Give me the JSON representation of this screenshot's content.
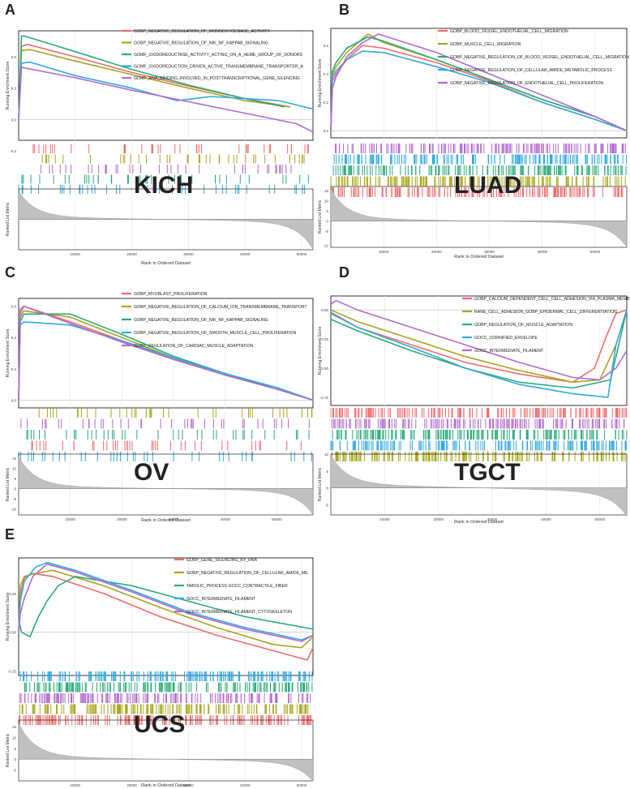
{
  "colors": {
    "red": "#F26A6B",
    "olive": "#A9A61D",
    "green": "#2BAA7A",
    "blue": "#33A9DF",
    "purple": "#B36AD0",
    "rank_fill": "#C0C0C0",
    "grid": "#E4E4E4"
  },
  "chart_data": [
    {
      "type": "line",
      "panel": "A",
      "cancer": "KICH",
      "ylabel_top": "Running Enrichment Score",
      "ylabel_bottom": "Ranked List Metric",
      "xlabel": "Rank in Ordered Dataset",
      "x_max": 52000,
      "x_ticks": [
        "10000",
        "20000",
        "30000",
        "40000",
        "50000"
      ],
      "x_tick_values": [
        10000,
        20000,
        30000,
        40000,
        50000
      ],
      "ylim": [
        -0.2,
        0.85
      ],
      "y_ticks": [
        "0.6",
        "0.3",
        "0.0",
        "-0.3"
      ],
      "y_tick_values": [
        0.6,
        0.3,
        0.0,
        -0.3
      ],
      "rank_ylim": [
        -15,
        15
      ],
      "rank_ticks": [],
      "tick_order": [
        "red",
        "olive",
        "purple",
        "green",
        "blue"
      ],
      "series": [
        {
          "name": "GOBP_NEGATIVE_REGULATION_OF_MONOOXYGENASE_ACTIVITY",
          "color": "red",
          "x": [
            0,
            500,
            1500,
            10000,
            20000,
            30000,
            40000,
            48000
          ],
          "y": [
            0,
            0.7,
            0.72,
            0.6,
            0.45,
            0.32,
            0.2,
            0.12
          ]
        },
        {
          "name": "GOBP_NEGATIVE_REGULATION_OF_NIK_NF_KAPPAB_SIGNALING",
          "color": "olive",
          "x": [
            0,
            500,
            2000,
            10000,
            20000,
            30000,
            40000,
            48000
          ],
          "y": [
            0,
            0.66,
            0.67,
            0.56,
            0.43,
            0.3,
            0.18,
            0.12
          ]
        },
        {
          "name": "GOMF_OXIDOREDUCTASE_ACTIVITY_ACTING_ON_A_HEME_GROUP_OF_DONORS",
          "color": "green",
          "x": [
            0,
            500,
            1000,
            10000,
            20000,
            30000,
            40000,
            47000
          ],
          "y": [
            0,
            0.8,
            0.8,
            0.65,
            0.48,
            0.33,
            0.2,
            0.12
          ]
        },
        {
          "name": "GOMF_OXIDOREDUCTION_DRIVEN_ACTIVE_TRANSMEMBRANE_TRANSPORTER_A",
          "color": "blue",
          "x": [
            0,
            500,
            2000,
            10000,
            20000,
            28000,
            34000,
            40000,
            46000,
            52000
          ],
          "y": [
            0,
            0.54,
            0.55,
            0.42,
            0.3,
            0.18,
            0.22,
            0.2,
            0.18,
            0.1
          ]
        },
        {
          "name": "GOMF_RNA_BINDING_INVOLVED_IN_POSTTRANSCRIPTIONAL_GENE_SILENCING",
          "color": "purple",
          "x": [
            0,
            500,
            1500,
            10000,
            20000,
            30000,
            40000,
            49000,
            52000
          ],
          "y": [
            0,
            0.5,
            0.49,
            0.4,
            0.28,
            0.17,
            0.06,
            -0.04,
            -0.12
          ]
        }
      ]
    },
    {
      "type": "line",
      "panel": "B",
      "cancer": "LUAD",
      "ylabel_top": "Running Enrichment Score",
      "ylabel_bottom": "Ranked List Metric",
      "xlabel": "Rank in Ordered Dataset",
      "x_max": 56000,
      "x_ticks": [
        "10000",
        "20000",
        "30000",
        "40000",
        "50000"
      ],
      "x_tick_values": [
        10000,
        20000,
        30000,
        40000,
        50000
      ],
      "ylim": [
        -0.05,
        0.72
      ],
      "y_ticks": [
        "0.6",
        "0.4",
        "0.2",
        "0.0"
      ],
      "y_tick_values": [
        0.6,
        0.4,
        0.2,
        0.0
      ],
      "rank_ylim": [
        -13,
        17
      ],
      "rank_ticks": [
        "15",
        "10",
        "5",
        "0",
        "-5",
        "-12"
      ],
      "rank_tick_values": [
        15,
        10,
        5,
        0,
        -5,
        -12
      ],
      "tick_order": [
        "purple",
        "blue",
        "green",
        "olive",
        "red"
      ],
      "series": [
        {
          "name": "GOBP_BLOOD_VESSEL_ENDOTHELIAL_CELL_MIGRATION",
          "color": "red",
          "x": [
            0,
            300,
            1000,
            3000,
            6000,
            10000,
            20000,
            30000,
            40000,
            50000,
            56000
          ],
          "y": [
            0,
            0.35,
            0.4,
            0.5,
            0.6,
            0.58,
            0.48,
            0.35,
            0.2,
            0.08,
            0.0
          ]
        },
        {
          "name": "GOBP_MUSCLE_CELL_MIGRATION",
          "color": "olive",
          "x": [
            0,
            300,
            1000,
            3000,
            7000,
            10000,
            20000,
            30000,
            40000,
            50000,
            56000
          ],
          "y": [
            0,
            0.4,
            0.45,
            0.55,
            0.68,
            0.62,
            0.5,
            0.36,
            0.22,
            0.1,
            0.0
          ]
        },
        {
          "name": "GOBP_NEGATIVE_REGULATION_OF_BLOOD_VESSEL_ENDOTHELIAL_CELL_MIGRATION",
          "color": "green",
          "x": [
            0,
            300,
            1000,
            3000,
            7000,
            10000,
            20000,
            30000,
            40000,
            50000,
            56000
          ],
          "y": [
            0,
            0.42,
            0.48,
            0.58,
            0.66,
            0.63,
            0.5,
            0.36,
            0.22,
            0.1,
            0.0
          ]
        },
        {
          "name": "GOBP_NEGATIVE_REGULATION_OF_CELLULAR_AMIDE_METABOLIC_PROCESS",
          "color": "blue",
          "x": [
            0,
            300,
            1000,
            3000,
            6000,
            10000,
            20000,
            30000,
            40000,
            50000,
            56000
          ],
          "y": [
            0,
            0.38,
            0.42,
            0.5,
            0.56,
            0.55,
            0.45,
            0.34,
            0.2,
            0.08,
            0.0
          ]
        },
        {
          "name": "GOBP_NEGATIVE_REGULATION_OF_ENDOTHELIAL_CELL_PROLIFERATION",
          "color": "purple",
          "x": [
            0,
            300,
            1000,
            3000,
            6000,
            9000,
            20000,
            30000,
            40000,
            50000,
            56000
          ],
          "y": [
            0,
            0.3,
            0.38,
            0.52,
            0.62,
            0.68,
            0.55,
            0.4,
            0.25,
            0.1,
            0.0
          ]
        }
      ]
    },
    {
      "type": "line",
      "panel": "C",
      "cancer": "OV",
      "ylabel_top": "Running Enrichment Score",
      "ylabel_bottom": "Ranked List Metric",
      "xlabel": "Rank in Ordered Dataset",
      "x_max": 57000,
      "x_ticks": [
        "10000",
        "20000",
        "30000",
        "40000",
        "50000"
      ],
      "x_tick_values": [
        10000,
        20000,
        30000,
        40000,
        50000
      ],
      "ylim": [
        -0.05,
        0.65
      ],
      "y_ticks": [
        "0.6",
        "0.4",
        "0.2",
        "0.0"
      ],
      "y_tick_values": [
        0.6,
        0.4,
        0.2,
        0.0
      ],
      "rank_ylim": [
        -13,
        17
      ],
      "rank_ticks": [
        "15",
        "10",
        "5",
        "0",
        "-5",
        "-10"
      ],
      "rank_tick_values": [
        15,
        10,
        5,
        0,
        -5,
        -10
      ],
      "tick_order": [
        "olive",
        "purple",
        "green",
        "red",
        "blue"
      ],
      "series": [
        {
          "name": "GOBP_MYOBLAST_PROLIFERATION",
          "color": "red",
          "x": [
            0,
            300,
            1000,
            10000,
            20000,
            30000,
            40000,
            50000,
            57000
          ],
          "y": [
            0,
            0.55,
            0.6,
            0.5,
            0.38,
            0.26,
            0.16,
            0.07,
            0.0
          ]
        },
        {
          "name": "GOBP_NEGATIVE_REGULATION_OF_CALCIUM_ION_TRANSMEMBRANE_TRANSPORT",
          "color": "olive",
          "x": [
            0,
            300,
            1000,
            10000,
            20000,
            30000,
            40000,
            50000,
            57000
          ],
          "y": [
            0,
            0.53,
            0.57,
            0.53,
            0.4,
            0.27,
            0.16,
            0.07,
            0.0
          ]
        },
        {
          "name": "GOBP_NEGATIVE_REGULATION_OF_NIK_NF_KAPPAB_SIGNALING",
          "color": "green",
          "x": [
            0,
            300,
            1000,
            10000,
            20000,
            30000,
            40000,
            50000,
            57000
          ],
          "y": [
            0,
            0.5,
            0.55,
            0.55,
            0.42,
            0.28,
            0.17,
            0.07,
            0.0
          ]
        },
        {
          "name": "GOBP_NEGATIVE_REGULATION_OF_SMOOTH_MUSCLE_CELL_PROLIFERATION",
          "color": "blue",
          "x": [
            0,
            300,
            1000,
            10000,
            20000,
            30000,
            40000,
            50000,
            57000
          ],
          "y": [
            0,
            0.48,
            0.5,
            0.48,
            0.38,
            0.27,
            0.17,
            0.08,
            0.0
          ]
        },
        {
          "name": "GOBP_REGULATION_OF_CARDIAC_MUSCLE_ADAPTATION",
          "color": "purple",
          "x": [
            0,
            300,
            1000,
            10000,
            20000,
            30000,
            40000,
            50000,
            57000
          ],
          "y": [
            0,
            0.58,
            0.6,
            0.49,
            0.37,
            0.26,
            0.16,
            0.07,
            0.0
          ]
        }
      ]
    },
    {
      "type": "line",
      "panel": "D",
      "cancer": "TGCT",
      "ylabel_top": "Running Enrichment Score",
      "ylabel_bottom": "Ranked List Metric",
      "xlabel": "Rank in Ordered Dataset",
      "x_max": 55000,
      "x_ticks": [
        "10000",
        "20000",
        "30000",
        "40000",
        "50000"
      ],
      "x_tick_values": [
        10000,
        20000,
        30000,
        40000,
        50000
      ],
      "ylim": [
        -0.82,
        0.12
      ],
      "y_ticks": [
        "0.00",
        "-0.25",
        "-0.50",
        "-0.75"
      ],
      "y_tick_values": [
        0.0,
        -0.25,
        -0.5,
        -0.75
      ],
      "rank_ylim": [
        -8,
        10
      ],
      "rank_ticks": [
        "10",
        "5",
        "0",
        "-5"
      ],
      "rank_tick_values": [
        10,
        5,
        0,
        -5
      ],
      "tick_order": [
        "red",
        "purple",
        "green",
        "blue",
        "olive"
      ],
      "series": [
        {
          "name": "GOBP_CALCIUM_DEPENDENT_CELL_CELL_ADHESION_VIA_PLASMA_MEMB",
          "color": "red",
          "x": [
            0,
            5000,
            15000,
            25000,
            35000,
            45000,
            49000,
            51000,
            53000,
            55000
          ],
          "y": [
            -0.03,
            -0.15,
            -0.3,
            -0.45,
            -0.55,
            -0.62,
            -0.5,
            -0.25,
            -0.03,
            0.0
          ]
        },
        {
          "name": "RANE_CELL_ADHESION_GOBP_EPIDERMAL_CELL_DIFFERENTIATION",
          "color": "olive",
          "x": [
            0,
            5000,
            15000,
            25000,
            35000,
            45000,
            50000,
            53000,
            55000
          ],
          "y": [
            0.0,
            -0.1,
            -0.25,
            -0.4,
            -0.52,
            -0.62,
            -0.6,
            -0.3,
            0.0
          ]
        },
        {
          "name": "GOBP_REGULATION_OF_MUSCLE_ADAPTATION",
          "color": "green",
          "x": [
            0,
            5000,
            15000,
            25000,
            35000,
            45000,
            52000,
            54000,
            55000
          ],
          "y": [
            -0.08,
            -0.18,
            -0.35,
            -0.5,
            -0.62,
            -0.67,
            -0.6,
            -0.2,
            0.0
          ]
        },
        {
          "name": "GOCC_CORNIFIED_ENVELOPE",
          "color": "blue",
          "x": [
            0,
            5000,
            15000,
            25000,
            35000,
            45000,
            51500,
            53000,
            55000
          ],
          "y": [
            -0.02,
            -0.15,
            -0.32,
            -0.5,
            -0.64,
            -0.72,
            -0.75,
            -0.3,
            0.0
          ]
        },
        {
          "name": "GOCC_INTERMEDIATE_FILAMENT",
          "color": "purple",
          "x": [
            0,
            1000,
            5000,
            15000,
            25000,
            35000,
            45000,
            50000,
            53000,
            55000
          ],
          "y": [
            0.05,
            0.08,
            0.0,
            -0.15,
            -0.3,
            -0.45,
            -0.58,
            -0.6,
            -0.5,
            -0.35
          ]
        }
      ]
    },
    {
      "type": "line",
      "panel": "E",
      "cancer": "UCS",
      "ylabel_top": "Running Enrichment Score",
      "ylabel_bottom": "Ranked List Metric",
      "xlabel": "Rank in Ordered Dataset",
      "x_max": 52000,
      "x_ticks": [
        "10000",
        "20000",
        "30000",
        "40000",
        "50000"
      ],
      "x_tick_values": [
        10000,
        20000,
        30000,
        40000,
        50000
      ],
      "ylim": [
        -0.28,
        0.48
      ],
      "y_ticks": [
        "0.25",
        "0.00",
        "-0.25"
      ],
      "y_tick_values": [
        0.25,
        0.0,
        -0.25
      ],
      "rank_ylim": [
        -10,
        18
      ],
      "rank_ticks": [
        "15",
        "10",
        "5",
        "0",
        "-5"
      ],
      "rank_tick_values": [
        15,
        10,
        5,
        0,
        -5
      ],
      "tick_order": [
        "blue",
        "green",
        "purple",
        "olive",
        "red"
      ],
      "series": [
        {
          "name": "GOBP_GENE_SILENCING_BY_RNA",
          "color": "red",
          "x": [
            0,
            300,
            1000,
            2500,
            6000,
            15000,
            25000,
            35000,
            45000,
            51000,
            52000
          ],
          "y": [
            0,
            0.25,
            0.35,
            0.38,
            0.36,
            0.25,
            0.1,
            -0.02,
            -0.12,
            -0.18,
            -0.1
          ]
        },
        {
          "name": "GOBP_NEGATIVE_REGULATION_OF_CELLULAR_AMIDE_ME",
          "color": "olive",
          "x": [
            0,
            300,
            1000,
            3000,
            6000,
            15000,
            25000,
            35000,
            45000,
            50000,
            52000
          ],
          "y": [
            0,
            0.3,
            0.36,
            0.38,
            0.4,
            0.3,
            0.16,
            0.03,
            -0.08,
            -0.1,
            -0.03
          ]
        },
        {
          "name": "TABOLIC_PROCESS GOCC_CONTRACTILE_FIBER",
          "color": "green",
          "x": [
            0,
            500,
            2000,
            3500,
            5000,
            7000,
            10000,
            20000,
            30000,
            40000,
            52000
          ],
          "y": [
            0.08,
            0.0,
            -0.03,
            0.1,
            0.2,
            0.3,
            0.36,
            0.3,
            0.2,
            0.1,
            0.02
          ]
        },
        {
          "name": "GOCC_INTERMEDIATE_FILAMENT",
          "color": "blue",
          "x": [
            0,
            300,
            1000,
            3000,
            5000,
            10000,
            20000,
            30000,
            40000,
            50000,
            52000
          ],
          "y": [
            0,
            0.2,
            0.33,
            0.42,
            0.45,
            0.4,
            0.27,
            0.13,
            0.03,
            -0.05,
            -0.02
          ]
        },
        {
          "name": "GOCC_INTERMEDIATE_FILAMENT_CYTOSKELETON",
          "color": "purple",
          "x": [
            0,
            300,
            1000,
            2500,
            5000,
            10000,
            20000,
            30000,
            40000,
            50000,
            52000
          ],
          "y": [
            0,
            0.12,
            0.22,
            0.36,
            0.44,
            0.39,
            0.26,
            0.12,
            0.02,
            -0.06,
            -0.02
          ]
        }
      ]
    }
  ]
}
